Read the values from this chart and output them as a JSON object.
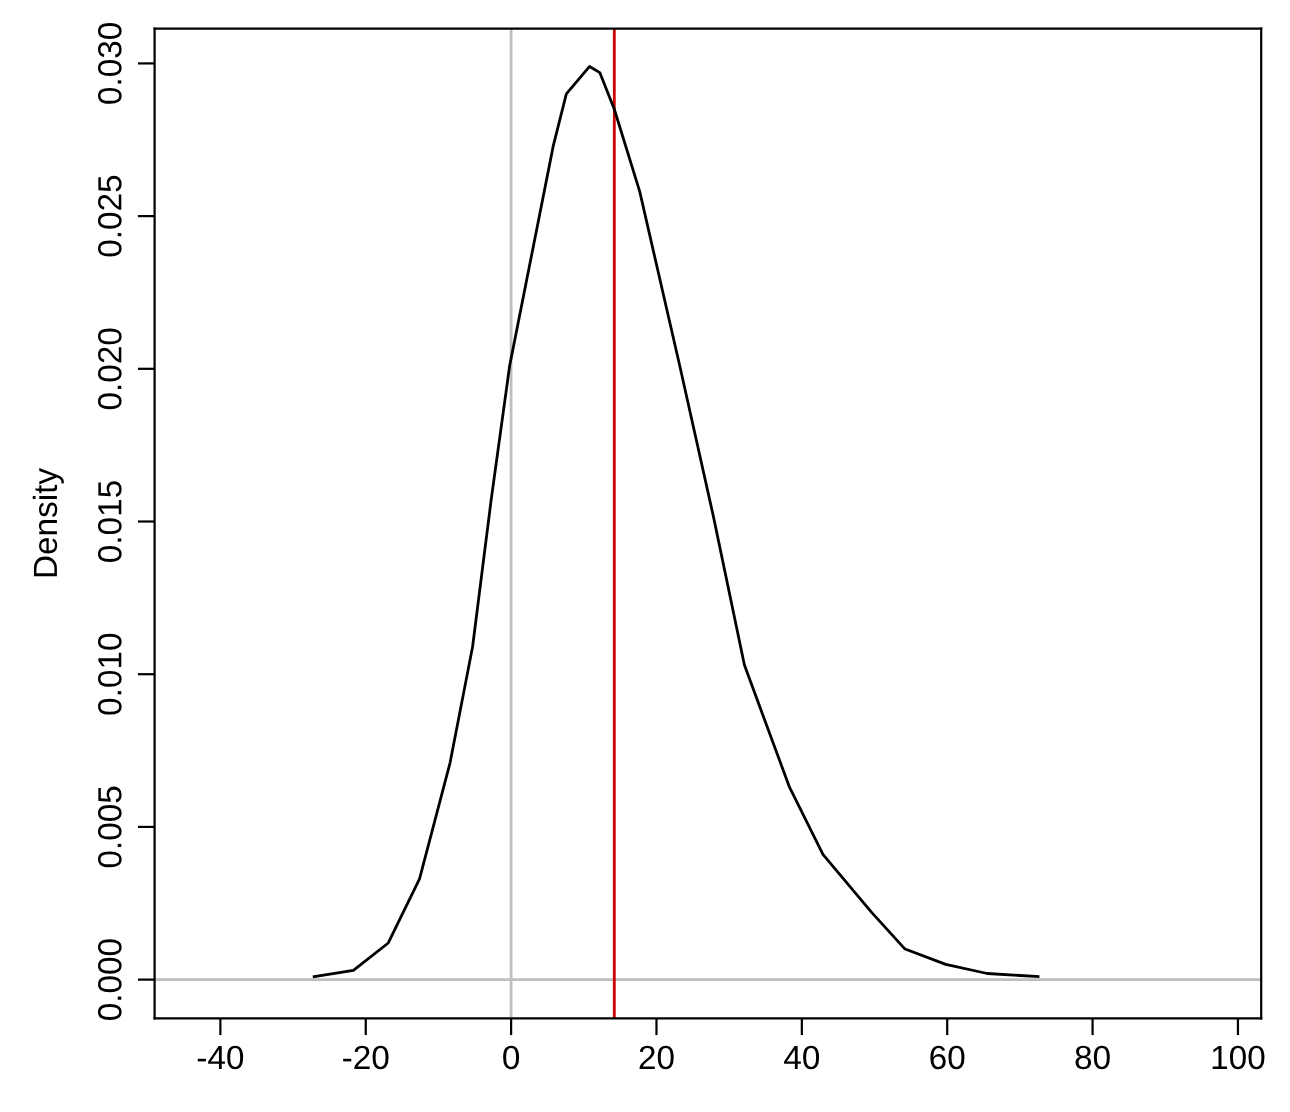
{
  "chart_data": {
    "type": "line",
    "ylabel": "Density",
    "x": [
      -27.1,
      -21.7,
      -16.9,
      -12.6,
      -8.4,
      -5.3,
      -2.75,
      -0.2,
      3.05,
      5.8,
      7.6,
      10.8,
      12.2,
      14.2,
      17.7,
      23.2,
      27.8,
      32.1,
      38.3,
      42.9,
      49.6,
      54.2,
      59.8,
      65.5,
      72.5
    ],
    "series": [
      {
        "color": "#000000",
        "values": [
          0.0001,
          0.0003,
          0.0012,
          0.0033,
          0.0071,
          0.0109,
          0.0157,
          0.0201,
          0.024,
          0.0273,
          0.029,
          0.0299,
          0.0297,
          0.0285,
          0.0258,
          0.0201,
          0.0152,
          0.0103,
          0.0063,
          0.0041,
          0.0022,
          0.001,
          0.0005,
          0.0002,
          0.0001
        ]
      }
    ],
    "xlim": [
      -49.05,
      103.2
    ],
    "ylim": [
      -0.00127,
      0.03114
    ],
    "xticks": [
      -40,
      -20,
      0,
      20,
      40,
      60,
      80,
      100
    ],
    "yticks": [
      {
        "value": 0,
        "label": "0.000"
      },
      {
        "value": 0.005,
        "label": "0.005"
      },
      {
        "value": 0.01,
        "label": "0.010"
      },
      {
        "value": 0.015,
        "label": "0.015"
      },
      {
        "value": 0.02,
        "label": "0.020"
      },
      {
        "value": 0.025,
        "label": "0.025"
      },
      {
        "value": 0.03,
        "label": "0.030"
      }
    ],
    "ref_lines": [
      {
        "axis": "x",
        "value": 0,
        "color": "#bebebe"
      },
      {
        "axis": "y",
        "value": 0,
        "color": "#bebebe"
      },
      {
        "axis": "x",
        "value": 14.2,
        "color": "#cc0000"
      }
    ],
    "grid": false,
    "legend": false,
    "marker": "none",
    "line_style": "solid"
  }
}
